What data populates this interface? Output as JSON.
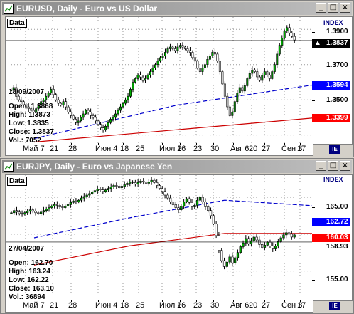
{
  "top": {
    "title": "EURUSD, Daily - Euro vs US Dollar",
    "data_label": "Data",
    "index_label": "INDEX",
    "corner_label": "IE",
    "info": {
      "date": "18/09/2007",
      "open": "Open: 1.3868",
      "high": "High: 1.3873",
      "low": "Low: 1.3835",
      "close": "Close: 1.3837",
      "vol": "Vol.: 7052"
    },
    "price_labels": [
      "1.3900",
      "1.3837",
      "1.3700",
      "1.3594",
      "1.3500",
      "1.3399"
    ],
    "tag_colors": [
      "#ffffff",
      "#000000",
      "#ffffff",
      "#0000ff",
      "#ffffff",
      "#ff0000"
    ],
    "dates": [
      "Май 7",
      "21",
      "28",
      "Июн 4",
      "18",
      "25",
      "Июл 2",
      "16",
      "23",
      "30",
      "Авг 6",
      "20",
      "27",
      "Сен 3",
      "17"
    ],
    "colors": {
      "up": "#00aa00",
      "down": "#000000",
      "ma_fast": "#0000cc",
      "ma_slow": "#cc0000",
      "grid": "#999999"
    }
  },
  "bottom": {
    "title": "EURJPY, Daily - Euro vs Japanese Yen",
    "data_label": "Data",
    "index_label": "INDEX",
    "corner_label": "IE",
    "info": {
      "date": "27/04/2007",
      "open": "Open: 162.70",
      "high": "High: 163.24",
      "low": "Low: 162.22",
      "close": "Close: 163.10",
      "vol": "Vol.: 36894"
    },
    "price_labels": [
      "165.00",
      "162.72",
      "160.03",
      "158.93",
      "155.00"
    ],
    "dates": [
      "Май 7",
      "21",
      "28",
      "Июн 4",
      "18",
      "25",
      "Июл 2",
      "16",
      "23",
      "30",
      "Авг 6",
      "20",
      "27",
      "Сен 3",
      "17"
    ]
  },
  "chart_data": [
    {
      "type": "candlestick",
      "title": "EURUSD, Daily - Euro vs US Dollar",
      "ylim": [
        1.325,
        1.397
      ],
      "x": [
        "Май 7",
        "21",
        "28",
        "Июн 4",
        "18",
        "25",
        "Июл 2",
        "16",
        "23",
        "30",
        "Авг 6",
        "20",
        "27",
        "Сен 3",
        "17"
      ],
      "close_series": [
        1.3555,
        1.357,
        1.352,
        1.35,
        1.349,
        1.347,
        1.346,
        1.345,
        1.344,
        1.343,
        1.345,
        1.347,
        1.349,
        1.35,
        1.352,
        1.354,
        1.356,
        1.353,
        1.35,
        1.348,
        1.347,
        1.349,
        1.346,
        1.343,
        1.341,
        1.339,
        1.337,
        1.338,
        1.34,
        1.342,
        1.344,
        1.343,
        1.341,
        1.34,
        1.338,
        1.336,
        1.334,
        1.333,
        1.335,
        1.337,
        1.339,
        1.34,
        1.342,
        1.344,
        1.346,
        1.348,
        1.35,
        1.352,
        1.356,
        1.36,
        1.362,
        1.364,
        1.363,
        1.361,
        1.362,
        1.364,
        1.366,
        1.368,
        1.37,
        1.372,
        1.374,
        1.375,
        1.377,
        1.379,
        1.38,
        1.379,
        1.378,
        1.38,
        1.381,
        1.38,
        1.379,
        1.378,
        1.377,
        1.374,
        1.372,
        1.368,
        1.366,
        1.368,
        1.37,
        1.373,
        1.375,
        1.377,
        1.376,
        1.372,
        1.366,
        1.359,
        1.352,
        1.346,
        1.341,
        1.343,
        1.349,
        1.354,
        1.357,
        1.355,
        1.358,
        1.362,
        1.365,
        1.367,
        1.366,
        1.363,
        1.361,
        1.364,
        1.366,
        1.364,
        1.362,
        1.366,
        1.37,
        1.376,
        1.381,
        1.385,
        1.389,
        1.391,
        1.388,
        1.386,
        1.384
      ],
      "ma_fast": [
        1.328,
        1.347,
        1.359
      ],
      "ma_slow": [
        1.326,
        1.333,
        1.34
      ],
      "last": 1.3837
    },
    {
      "type": "candlestick",
      "title": "EURJPY, Daily - Euro vs Japanese Yen",
      "ylim": [
        151,
        168
      ],
      "x": [
        "Май 7",
        "21",
        "28",
        "Июн 4",
        "18",
        "25",
        "Июл 2",
        "16",
        "23",
        "30",
        "Авг 6",
        "20",
        "27",
        "Сен 3",
        "17"
      ],
      "close_series": [
        162.9,
        163.2,
        163.0,
        162.8,
        162.7,
        162.9,
        163.1,
        163.3,
        163.1,
        162.9,
        162.8,
        163.0,
        163.2,
        163.4,
        163.6,
        163.8,
        164.0,
        163.9,
        163.7,
        163.6,
        163.8,
        164.0,
        164.3,
        164.5,
        164.4,
        164.6,
        164.9,
        165.1,
        165.3,
        165.5,
        165.7,
        165.9,
        166.1,
        166.0,
        165.8,
        166.0,
        166.2,
        166.4,
        166.6,
        166.5,
        166.3,
        166.5,
        166.7,
        166.9,
        167.1,
        167.0,
        166.8,
        167.0,
        167.2,
        167.1,
        166.9,
        167.1,
        167.3,
        167.0,
        166.6,
        166.2,
        165.8,
        165.3,
        164.9,
        164.4,
        164.0,
        163.6,
        163.3,
        163.8,
        164.4,
        164.8,
        164.3,
        163.7,
        163.9,
        164.6,
        165.0,
        164.4,
        163.7,
        163.2,
        162.5,
        161.4,
        159.8,
        157.8,
        156.4,
        155.6,
        156.2,
        156.9,
        156.1,
        156.8,
        157.5,
        158.3,
        158.8,
        159.4,
        158.7,
        159.1,
        159.6,
        159.2,
        158.6,
        158.2,
        158.5,
        158.9,
        158.4,
        158.0,
        158.4,
        159.0,
        159.5,
        159.9,
        160.2,
        160.0,
        159.6,
        159.9
      ],
      "ma_fast": [
        159.5,
        162.2,
        164.6,
        163.8
      ],
      "ma_slow": [
        155.8,
        158.4,
        160.1,
        160.1
      ],
      "last": 158.93
    }
  ]
}
